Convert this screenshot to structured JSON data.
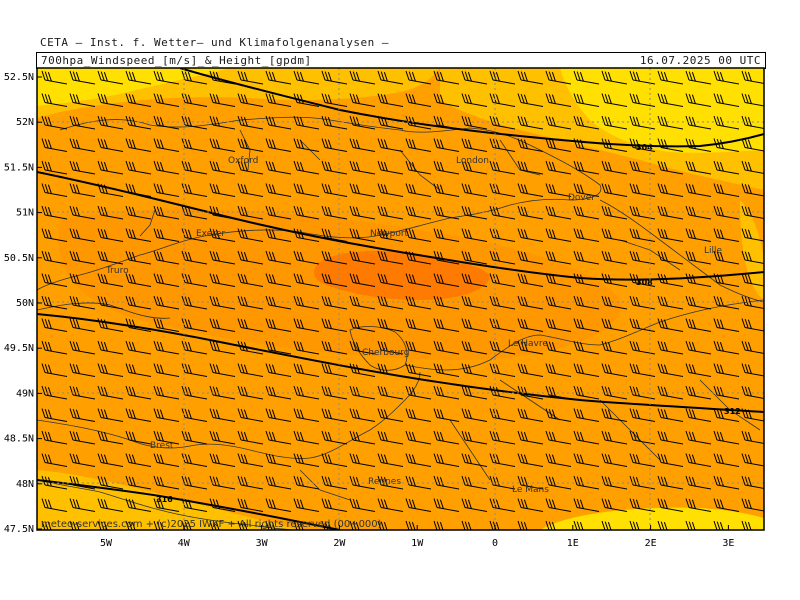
{
  "header": {
    "line1": "CETA – Inst. f. Wetter– und Klimafolgenanalysen –",
    "line2": "700hpa_Windspeed_[m/s]_&_Height_[gpdm]",
    "datetime": "16.07.2025  00 UTC"
  },
  "lat_labels": [
    "52.5N",
    "52N",
    "51.5N",
    "51N",
    "50.5N",
    "50N",
    "49.5N",
    "49N",
    "48.5N",
    "48N",
    "47.5N"
  ],
  "lon_labels": [
    "5W",
    "4W",
    "3W",
    "2W",
    "1W",
    "0",
    "1E",
    "2E",
    "3E"
  ],
  "cities": [
    {
      "name": "Oxford"
    },
    {
      "name": "London"
    },
    {
      "name": "Dover"
    },
    {
      "name": "Exeter"
    },
    {
      "name": "Newport"
    },
    {
      "name": "Lille"
    },
    {
      "name": "Truro"
    },
    {
      "name": "Cherbourg"
    },
    {
      "name": "Le Havre"
    },
    {
      "name": "Brest"
    },
    {
      "name": "Rennes"
    },
    {
      "name": "Le Mans"
    }
  ],
  "contour_labels": [
    "304",
    "308",
    "312",
    "316"
  ],
  "credit": "meteo-services.com + (c)2025 IWKF + All rights reserved (00+000)",
  "colors": {
    "light_yellow": "#ffe000",
    "yellow_orange": "#ffc000",
    "orange": "#ffa000",
    "dark_orange": "#ff7a00",
    "contour": "#000000",
    "coastline": "#333333"
  },
  "legend_wind_units": "m/s"
}
